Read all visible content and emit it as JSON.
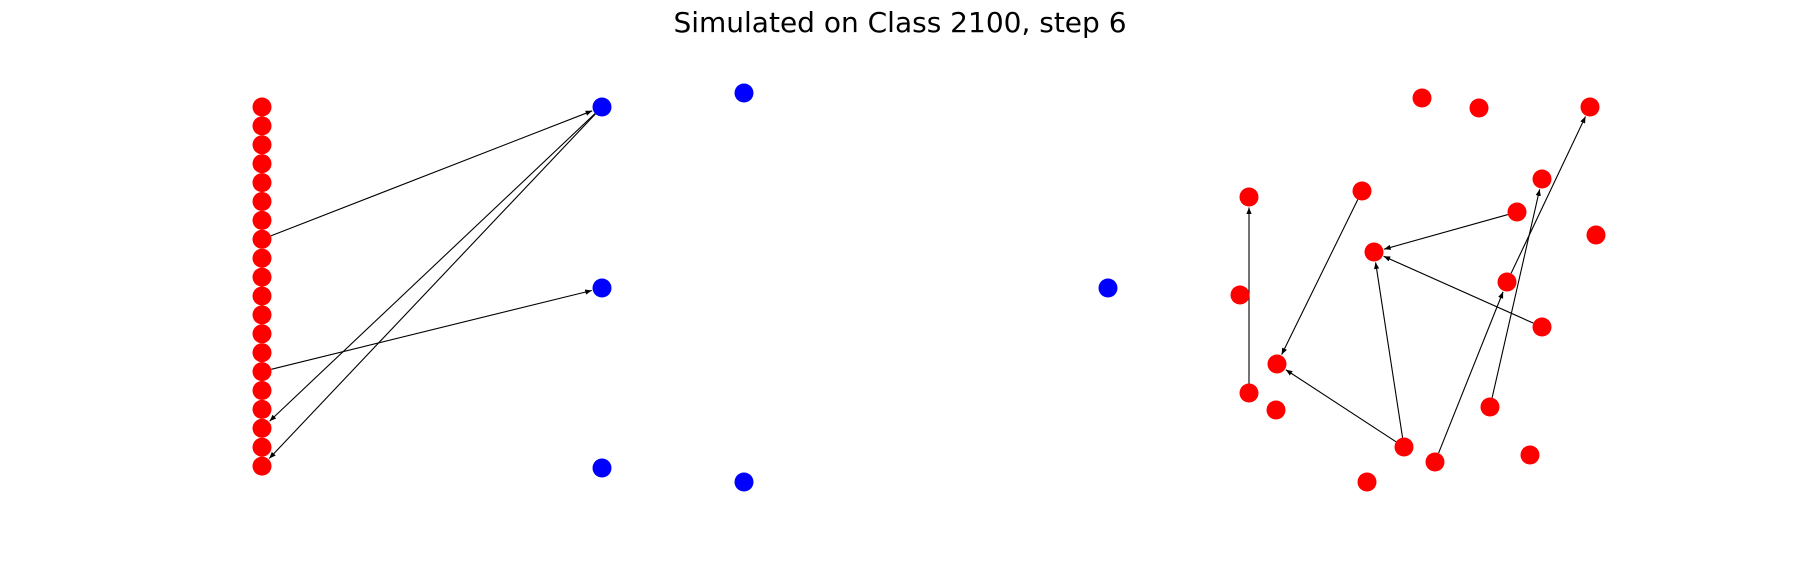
{
  "title": "Simulated on Class 2100, step 6",
  "colors": {
    "red": "#ff0000",
    "blue": "#0000ff",
    "edge": "#000000"
  },
  "nodes": [
    {
      "id": "L0",
      "color": "red"
    },
    {
      "id": "L1",
      "color": "red"
    },
    {
      "id": "L2",
      "color": "red"
    },
    {
      "id": "L3",
      "color": "red"
    },
    {
      "id": "L4",
      "color": "red"
    },
    {
      "id": "L5",
      "color": "red"
    },
    {
      "id": "L6",
      "color": "red"
    },
    {
      "id": "L7",
      "color": "red"
    },
    {
      "id": "L8",
      "color": "red"
    },
    {
      "id": "L9",
      "color": "red"
    },
    {
      "id": "L10",
      "color": "red"
    },
    {
      "id": "L11",
      "color": "red"
    },
    {
      "id": "L12",
      "color": "red"
    },
    {
      "id": "L13",
      "color": "red"
    },
    {
      "id": "L14",
      "color": "red"
    },
    {
      "id": "L15",
      "color": "red"
    },
    {
      "id": "L16",
      "color": "red"
    },
    {
      "id": "L17",
      "color": "red"
    },
    {
      "id": "L18",
      "color": "red"
    },
    {
      "id": "L19",
      "color": "red"
    },
    {
      "id": "B1",
      "color": "blue"
    },
    {
      "id": "B2",
      "color": "blue"
    },
    {
      "id": "B3",
      "color": "blue"
    },
    {
      "id": "B4",
      "color": "blue"
    },
    {
      "id": "B5",
      "color": "blue"
    },
    {
      "id": "B6",
      "color": "blue"
    },
    {
      "id": "R1",
      "color": "red"
    },
    {
      "id": "R2",
      "color": "red"
    },
    {
      "id": "R3",
      "color": "red"
    },
    {
      "id": "R4",
      "color": "red"
    },
    {
      "id": "R5",
      "color": "red"
    },
    {
      "id": "R6",
      "color": "red"
    },
    {
      "id": "R7",
      "color": "red"
    },
    {
      "id": "R8",
      "color": "red"
    },
    {
      "id": "R9",
      "color": "red"
    },
    {
      "id": "R10",
      "color": "red"
    },
    {
      "id": "R11",
      "color": "red"
    },
    {
      "id": "R12",
      "color": "red"
    },
    {
      "id": "R13",
      "color": "red"
    },
    {
      "id": "R14",
      "color": "red"
    },
    {
      "id": "R15",
      "color": "red"
    },
    {
      "id": "R16",
      "color": "red"
    },
    {
      "id": "R17",
      "color": "red"
    },
    {
      "id": "R18",
      "color": "red"
    },
    {
      "id": "R19",
      "color": "red"
    },
    {
      "id": "R20",
      "color": "red"
    }
  ],
  "edges": [
    {
      "from": "L7",
      "to": "B1"
    },
    {
      "from": "L14",
      "to": "B2"
    },
    {
      "from": "B1",
      "to": "L17"
    },
    {
      "from": "B1",
      "to": "L19"
    },
    {
      "from": "R9",
      "to": "R4"
    },
    {
      "from": "R5",
      "to": "R13"
    },
    {
      "from": "R7",
      "to": "R8"
    },
    {
      "from": "R10",
      "to": "R3"
    },
    {
      "from": "R11",
      "to": "R8"
    },
    {
      "from": "R17",
      "to": "R8"
    },
    {
      "from": "R17",
      "to": "R13"
    },
    {
      "from": "R18",
      "to": "R10"
    },
    {
      "from": "R14",
      "to": "R6"
    }
  ]
}
